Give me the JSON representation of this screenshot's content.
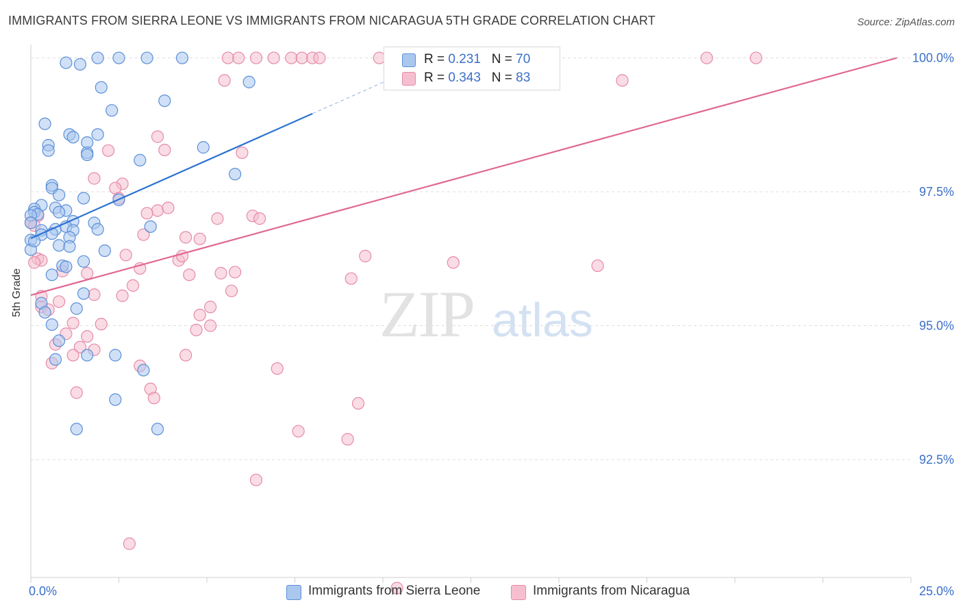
{
  "title": "IMMIGRANTS FROM SIERRA LEONE VS IMMIGRANTS FROM NICARAGUA 5TH GRADE CORRELATION CHART",
  "source": "Source: ZipAtlas.com",
  "watermark": {
    "zip": "ZIP",
    "atlas": "atlas"
  },
  "colors": {
    "blue_fill": "#aac7ee",
    "blue_stroke": "#5a8fd8",
    "blue_line": "#2a72d0",
    "pink_fill": "#f6bfd0",
    "pink_stroke": "#e58aa8",
    "pink_line": "#e06890",
    "tick_label": "#3a6fc8"
  },
  "legend": {
    "rows": [
      {
        "r_label": "R = ",
        "r_value": "0.231",
        "n_label": "N = ",
        "n_value": "70"
      },
      {
        "r_label": "R = ",
        "r_value": "0.343",
        "n_label": "N = ",
        "n_value": "83"
      }
    ]
  },
  "bottom_legend": {
    "items": [
      "Immigrants from Sierra Leone",
      "Immigrants from Nicaragua"
    ]
  },
  "chart_data": {
    "type": "scatter",
    "title": "IMMIGRANTS FROM SIERRA LEONE VS IMMIGRANTS FROM NICARAGUA 5TH GRADE CORRELATION CHART",
    "xlabel": "",
    "ylabel": "5th Grade",
    "xlim": [
      0,
      25
    ],
    "ylim": [
      90.3,
      100.25
    ],
    "x_tick_labels": [
      "0.0%",
      "25.0%"
    ],
    "y_ticks": [
      92.5,
      95.0,
      97.5,
      100.0
    ],
    "y_tick_labels": [
      "92.5%",
      "95.0%",
      "97.5%",
      "100.0%"
    ],
    "grid": true,
    "series": [
      {
        "name": "Immigrants from Sierra Leone",
        "r": 0.231,
        "n": 70,
        "trend": {
          "x0": 0.0,
          "y0": 96.63,
          "x1": 8.0,
          "y1": 98.96,
          "dashed_to_x": 10.8
        },
        "points": [
          [
            1.0,
            99.91
          ],
          [
            1.4,
            99.88
          ],
          [
            1.9,
            100.0
          ],
          [
            2.5,
            100.0
          ],
          [
            3.3,
            100.0
          ],
          [
            4.3,
            100.0
          ],
          [
            6.2,
            99.55
          ],
          [
            2.0,
            99.45
          ],
          [
            2.3,
            99.02
          ],
          [
            3.8,
            99.2
          ],
          [
            0.4,
            98.77
          ],
          [
            1.1,
            98.57
          ],
          [
            1.2,
            98.52
          ],
          [
            1.9,
            98.57
          ],
          [
            0.5,
            98.37
          ],
          [
            0.5,
            98.27
          ],
          [
            1.6,
            98.42
          ],
          [
            1.6,
            98.23
          ],
          [
            1.6,
            98.19
          ],
          [
            3.1,
            98.09
          ],
          [
            4.9,
            98.33
          ],
          [
            5.8,
            97.83
          ],
          [
            0.6,
            97.62
          ],
          [
            0.6,
            97.57
          ],
          [
            0.8,
            97.44
          ],
          [
            1.5,
            97.38
          ],
          [
            2.5,
            97.35
          ],
          [
            0.3,
            97.25
          ],
          [
            0.7,
            97.2
          ],
          [
            1.0,
            97.15
          ],
          [
            0.8,
            97.12
          ],
          [
            0.1,
            97.18
          ],
          [
            0.1,
            97.12
          ],
          [
            0.2,
            97.08
          ],
          [
            0.0,
            97.06
          ],
          [
            0.0,
            96.92
          ],
          [
            1.2,
            96.95
          ],
          [
            1.8,
            96.92
          ],
          [
            3.4,
            96.85
          ],
          [
            0.3,
            96.78
          ],
          [
            0.7,
            96.8
          ],
          [
            1.0,
            96.85
          ],
          [
            1.2,
            96.78
          ],
          [
            1.9,
            96.8
          ],
          [
            0.3,
            96.7
          ],
          [
            0.6,
            96.72
          ],
          [
            1.1,
            96.65
          ],
          [
            0.0,
            96.6
          ],
          [
            0.8,
            96.5
          ],
          [
            1.1,
            96.48
          ],
          [
            0.0,
            96.42
          ],
          [
            2.1,
            96.4
          ],
          [
            1.5,
            96.2
          ],
          [
            0.9,
            96.12
          ],
          [
            0.6,
            95.95
          ],
          [
            1.0,
            96.1
          ],
          [
            1.5,
            95.6
          ],
          [
            0.3,
            95.42
          ],
          [
            0.4,
            95.25
          ],
          [
            1.3,
            95.32
          ],
          [
            0.6,
            95.02
          ],
          [
            0.8,
            94.72
          ],
          [
            0.7,
            94.37
          ],
          [
            1.6,
            94.45
          ],
          [
            2.4,
            94.45
          ],
          [
            3.2,
            94.17
          ],
          [
            2.4,
            93.62
          ],
          [
            1.3,
            93.07
          ],
          [
            3.6,
            93.07
          ],
          [
            0.1,
            96.58
          ]
        ]
      },
      {
        "name": "Immigrants from Nicaragua",
        "r": 0.343,
        "n": 83,
        "trend": {
          "x0": 0.0,
          "y0": 95.57,
          "x1": 24.6,
          "y1": 100.0
        },
        "points": [
          [
            5.6,
            100.0
          ],
          [
            5.9,
            100.0
          ],
          [
            6.4,
            100.0
          ],
          [
            6.9,
            100.0
          ],
          [
            7.4,
            100.0
          ],
          [
            7.7,
            100.0
          ],
          [
            8.0,
            100.0
          ],
          [
            8.2,
            100.0
          ],
          [
            9.9,
            100.0
          ],
          [
            19.2,
            100.0
          ],
          [
            20.6,
            100.0
          ],
          [
            10.2,
            99.82
          ],
          [
            5.5,
            99.58
          ],
          [
            16.8,
            99.58
          ],
          [
            3.6,
            98.53
          ],
          [
            3.8,
            98.28
          ],
          [
            6.0,
            98.23
          ],
          [
            2.2,
            98.27
          ],
          [
            1.8,
            97.75
          ],
          [
            2.6,
            97.65
          ],
          [
            2.4,
            97.57
          ],
          [
            2.5,
            97.38
          ],
          [
            3.6,
            97.15
          ],
          [
            3.9,
            97.2
          ],
          [
            3.3,
            97.1
          ],
          [
            5.3,
            97.0
          ],
          [
            6.3,
            97.05
          ],
          [
            6.5,
            97.0
          ],
          [
            3.2,
            96.7
          ],
          [
            4.4,
            96.65
          ],
          [
            4.8,
            96.62
          ],
          [
            0.0,
            96.93
          ],
          [
            0.2,
            97.05
          ],
          [
            0.1,
            96.87
          ],
          [
            0.2,
            96.25
          ],
          [
            2.7,
            96.32
          ],
          [
            4.2,
            96.22
          ],
          [
            4.3,
            96.3
          ],
          [
            9.5,
            96.3
          ],
          [
            12.0,
            96.18
          ],
          [
            16.1,
            96.12
          ],
          [
            1.6,
            95.98
          ],
          [
            3.1,
            96.07
          ],
          [
            5.4,
            95.98
          ],
          [
            5.8,
            96.0
          ],
          [
            4.5,
            95.95
          ],
          [
            9.1,
            95.88
          ],
          [
            0.9,
            96.02
          ],
          [
            2.9,
            95.75
          ],
          [
            0.3,
            95.55
          ],
          [
            0.8,
            95.45
          ],
          [
            1.8,
            95.58
          ],
          [
            2.6,
            95.56
          ],
          [
            0.3,
            95.35
          ],
          [
            0.5,
            95.3
          ],
          [
            5.1,
            95.35
          ],
          [
            5.7,
            95.65
          ],
          [
            4.8,
            95.2
          ],
          [
            1.2,
            95.05
          ],
          [
            2.0,
            95.03
          ],
          [
            5.1,
            95.0
          ],
          [
            4.7,
            94.92
          ],
          [
            1.0,
            94.85
          ],
          [
            1.6,
            94.8
          ],
          [
            0.7,
            94.65
          ],
          [
            1.4,
            94.6
          ],
          [
            1.8,
            94.55
          ],
          [
            1.2,
            94.45
          ],
          [
            4.4,
            94.45
          ],
          [
            0.6,
            94.3
          ],
          [
            3.1,
            94.25
          ],
          [
            7.0,
            94.2
          ],
          [
            3.4,
            93.82
          ],
          [
            3.5,
            93.65
          ],
          [
            1.3,
            93.75
          ],
          [
            9.3,
            93.55
          ],
          [
            7.6,
            93.03
          ],
          [
            9.0,
            92.88
          ],
          [
            6.4,
            92.12
          ],
          [
            2.8,
            90.93
          ],
          [
            10.4,
            90.1
          ],
          [
            0.3,
            96.22
          ],
          [
            0.1,
            96.18
          ]
        ]
      }
    ]
  }
}
